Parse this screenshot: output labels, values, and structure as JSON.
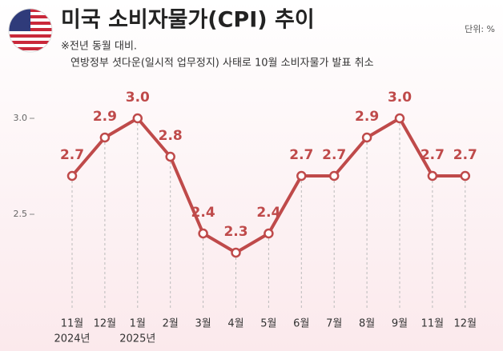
{
  "chart_data": {
    "type": "line",
    "title": "미국 소비자물가(CPI) 추이",
    "note": "※전년 동월 대비.",
    "subtitle": "연방정부 셧다운(일시적 업무정지) 사태로 10월 소비자물가 발표 취소",
    "unit": "단위: %",
    "categories": [
      "11월",
      "12월",
      "1월",
      "2월",
      "3월",
      "4월",
      "5월",
      "6월",
      "7월",
      "8월",
      "9월",
      "11월",
      "12월"
    ],
    "year_labels": [
      "2024년",
      null,
      "2025년",
      null,
      null,
      null,
      null,
      null,
      null,
      null,
      null,
      null,
      null
    ],
    "values": [
      2.7,
      2.9,
      3.0,
      2.8,
      2.4,
      2.3,
      2.4,
      2.7,
      2.7,
      2.9,
      3.0,
      2.7,
      2.7
    ],
    "value_labels": [
      "2.7",
      "2.9",
      "3.0",
      "2.8",
      "2.4",
      "2.3",
      "2.4",
      "2.7",
      "2.7",
      "2.9",
      "3.0",
      "2.7",
      "2.7"
    ],
    "color": "#bf4a4a",
    "ylim": [
      2.0,
      3.2
    ],
    "yticks": [
      {
        "value": 3,
        "label": "3.0"
      },
      2.5
    ]
  }
}
